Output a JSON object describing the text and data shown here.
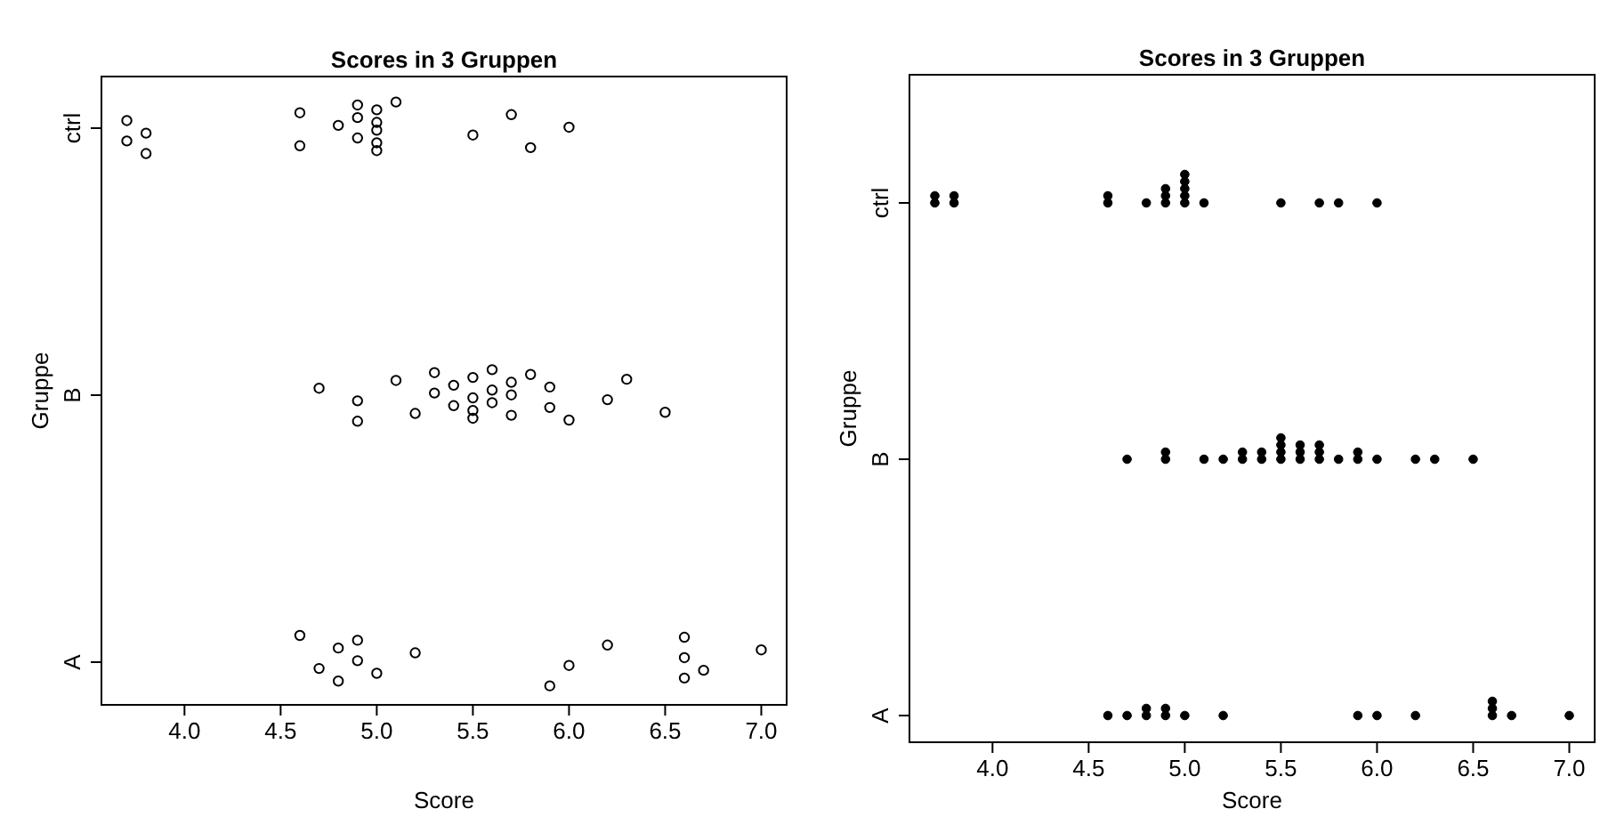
{
  "chart_data": [
    {
      "type": "scatter",
      "orientation": "horizontal",
      "title": "Scores in 3 Gruppen",
      "xlabel": "Score",
      "ylabel": "Gruppe",
      "marker": "circle",
      "xlim": [
        3.568,
        7.132
      ],
      "xticks": [
        {
          "value": 4,
          "label": "4.0"
        },
        {
          "value": 4.5,
          "label": "4.5"
        },
        {
          "value": 5,
          "label": "5.0"
        },
        {
          "value": 5.5,
          "label": "5.5"
        },
        {
          "value": 6,
          "label": "6.0"
        },
        {
          "value": 6.5,
          "label": "6.5"
        },
        {
          "value": 7,
          "label": "7.0"
        }
      ],
      "categories": [
        "ctrl",
        "B",
        "A"
      ],
      "series": [
        {
          "color": "#000000",
          "x": [
            "A",
            "A",
            "A",
            "A",
            "A",
            "A",
            "A",
            "A",
            "A",
            "A",
            "A",
            "A",
            "A",
            "A",
            "A",
            "A"
          ],
          "values": [
            4.6,
            4.7,
            4.8,
            4.8,
            4.9,
            4.9,
            5.0,
            5.2,
            5.9,
            6.0,
            6.2,
            6.6,
            6.6,
            6.6,
            6.7,
            7.0
          ]
        },
        {
          "color": "#000000",
          "x": [
            "B",
            "B",
            "B",
            "B",
            "B",
            "B",
            "B",
            "B",
            "B",
            "B",
            "B",
            "B",
            "B",
            "B",
            "B",
            "B",
            "B",
            "B",
            "B",
            "B",
            "B",
            "B",
            "B",
            "B",
            "B",
            "B"
          ],
          "values": [
            4.7,
            4.9,
            4.9,
            5.1,
            5.2,
            5.3,
            5.3,
            5.4,
            5.4,
            5.5,
            5.5,
            5.5,
            5.5,
            5.6,
            5.6,
            5.6,
            5.7,
            5.7,
            5.7,
            5.8,
            5.9,
            5.9,
            6.0,
            6.2,
            6.3,
            6.5
          ]
        },
        {
          "color": "#000000",
          "x": [
            "ctrl",
            "ctrl",
            "ctrl",
            "ctrl",
            "ctrl",
            "ctrl",
            "ctrl",
            "ctrl",
            "ctrl",
            "ctrl",
            "ctrl",
            "ctrl",
            "ctrl",
            "ctrl",
            "ctrl",
            "ctrl",
            "ctrl",
            "ctrl",
            "ctrl",
            "ctrl"
          ],
          "values": [
            3.7,
            3.7,
            3.8,
            3.8,
            4.6,
            4.6,
            4.8,
            4.9,
            4.9,
            4.9,
            5.0,
            5.0,
            5.0,
            5.0,
            5.0,
            5.1,
            5.5,
            5.7,
            5.8,
            6.0
          ]
        }
      ]
    },
    {
      "type": "scatter",
      "orientation": "horizontal",
      "title": "Scores in 3 Gruppen",
      "xlabel": "Score",
      "ylabel": "Gruppe",
      "marker": "circle",
      "xlim": [
        3.568,
        7.132
      ],
      "xticks": [
        {
          "value": 4,
          "label": "4.0"
        },
        {
          "value": 4.5,
          "label": "4.5"
        },
        {
          "value": 5,
          "label": "5.0"
        },
        {
          "value": 5.5,
          "label": "5.5"
        },
        {
          "value": 6,
          "label": "6.0"
        },
        {
          "value": 6.5,
          "label": "6.5"
        },
        {
          "value": 7,
          "label": "7.0"
        }
      ],
      "categories": [
        "ctrl",
        "B",
        "A"
      ],
      "series": [
        {
          "color": "#000000",
          "x": [
            "A",
            "A",
            "A",
            "A",
            "A",
            "A",
            "A",
            "A",
            "A",
            "A",
            "A",
            "A",
            "A",
            "A",
            "A",
            "A"
          ],
          "values": [
            4.6,
            4.7,
            4.8,
            4.8,
            4.9,
            4.9,
            5.0,
            5.2,
            5.9,
            6.0,
            6.2,
            6.6,
            6.6,
            6.6,
            6.7,
            7.0
          ]
        },
        {
          "color": "#000000",
          "x": [
            "B",
            "B",
            "B",
            "B",
            "B",
            "B",
            "B",
            "B",
            "B",
            "B",
            "B",
            "B",
            "B",
            "B",
            "B",
            "B",
            "B",
            "B",
            "B",
            "B",
            "B",
            "B",
            "B",
            "B",
            "B",
            "B"
          ],
          "values": [
            4.7,
            4.9,
            4.9,
            5.1,
            5.2,
            5.3,
            5.3,
            5.4,
            5.4,
            5.5,
            5.5,
            5.5,
            5.5,
            5.6,
            5.6,
            5.6,
            5.7,
            5.7,
            5.7,
            5.8,
            5.9,
            5.9,
            6.0,
            6.2,
            6.3,
            6.5
          ]
        },
        {
          "color": "#000000",
          "x": [
            "ctrl",
            "ctrl",
            "ctrl",
            "ctrl",
            "ctrl",
            "ctrl",
            "ctrl",
            "ctrl",
            "ctrl",
            "ctrl",
            "ctrl",
            "ctrl",
            "ctrl",
            "ctrl",
            "ctrl",
            "ctrl",
            "ctrl",
            "ctrl",
            "ctrl",
            "ctrl"
          ],
          "values": [
            3.7,
            3.7,
            3.8,
            3.8,
            4.6,
            4.6,
            4.8,
            4.9,
            4.9,
            4.9,
            5.0,
            5.0,
            5.0,
            5.0,
            5.0,
            5.1,
            5.5,
            5.7,
            5.8,
            6.0
          ]
        }
      ]
    }
  ]
}
